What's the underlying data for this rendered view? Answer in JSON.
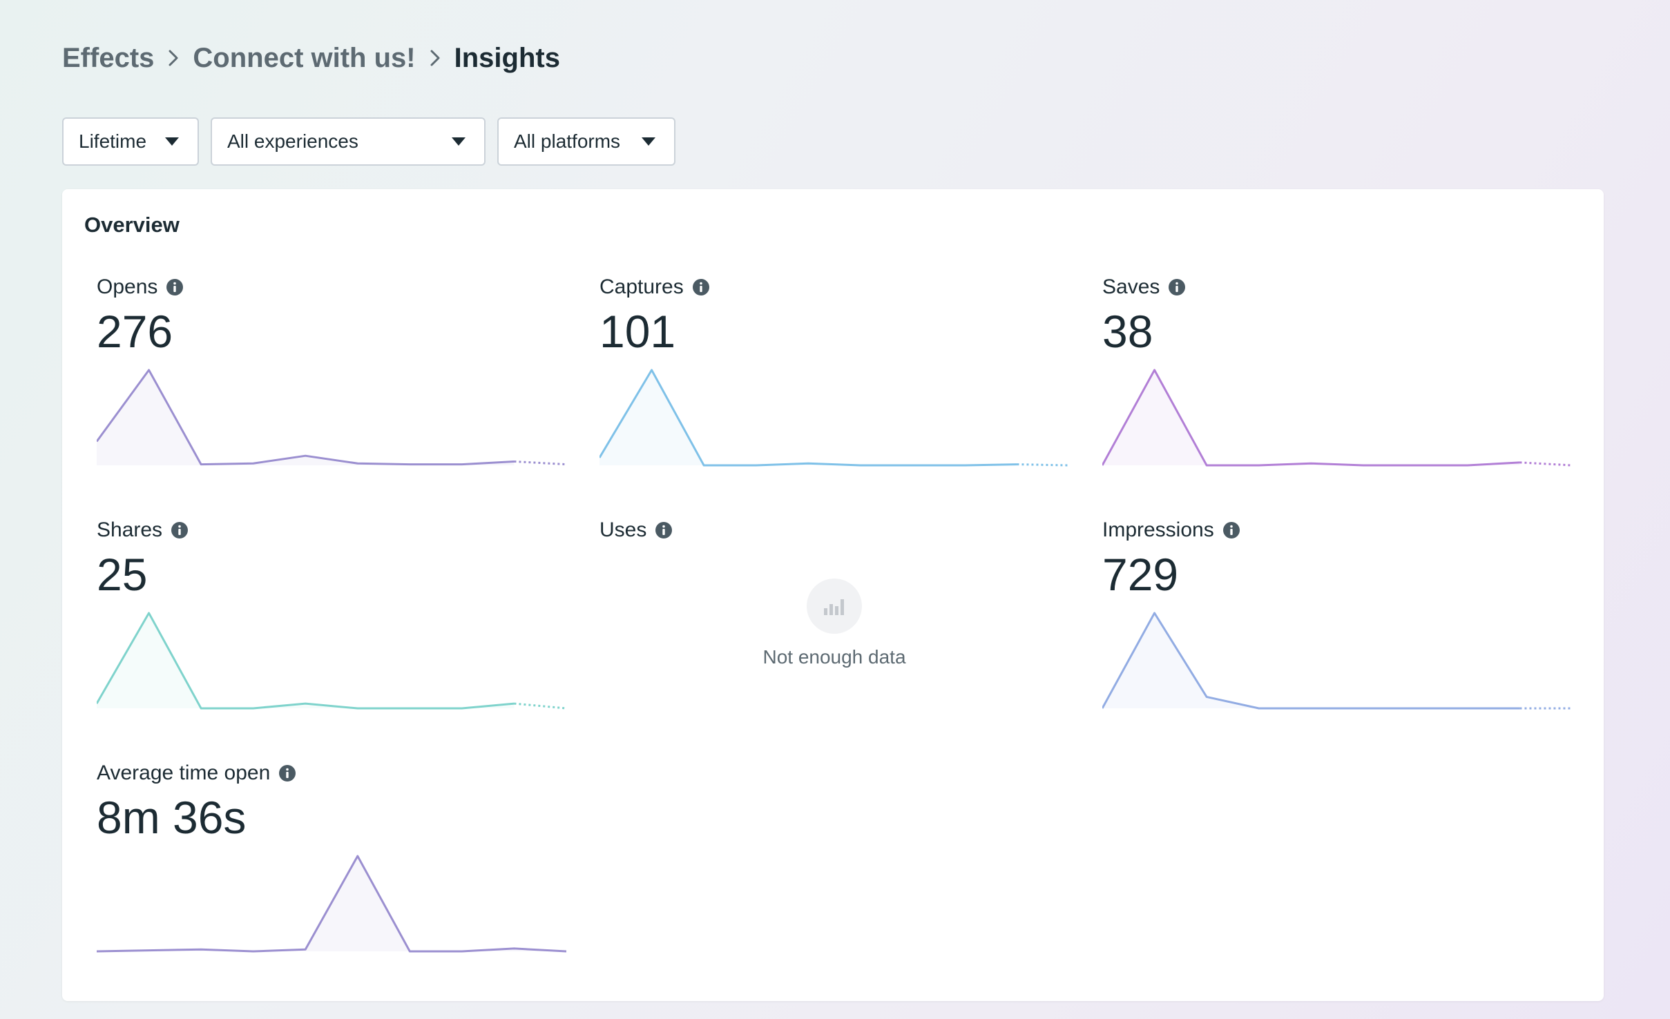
{
  "breadcrumb": {
    "items": [
      "Effects",
      "Connect with us!",
      "Insights"
    ]
  },
  "filters": {
    "time": "Lifetime",
    "experience": "All experiences",
    "platform": "All platforms"
  },
  "overview": {
    "title": "Overview",
    "metrics": [
      {
        "label": "Opens",
        "value": "276",
        "color": "#9b8fd0",
        "series": [
          0.25,
          1.0,
          0.01,
          0.02,
          0.1,
          0.02,
          0.01,
          0.01,
          0.04
        ],
        "tail": 0.01
      },
      {
        "label": "Captures",
        "value": "101",
        "color": "#7fc1e8",
        "series": [
          0.08,
          1.0,
          0.0,
          0.0,
          0.02,
          0.0,
          0.0,
          0.0,
          0.01
        ],
        "tail": 0.0
      },
      {
        "label": "Saves",
        "value": "38",
        "color": "#b27fd6",
        "series": [
          0.0,
          1.0,
          0.0,
          0.0,
          0.02,
          0.0,
          0.0,
          0.0,
          0.03
        ],
        "tail": 0.0
      },
      {
        "label": "Shares",
        "value": "25",
        "color": "#7fd3cc",
        "series": [
          0.05,
          1.0,
          0.0,
          0.0,
          0.05,
          0.0,
          0.0,
          0.0,
          0.05
        ],
        "tail": 0.0
      },
      {
        "label": "Uses",
        "empty_text": "Not enough data"
      },
      {
        "label": "Impressions",
        "value": "729",
        "color": "#92ace3",
        "series": [
          0.0,
          1.0,
          0.12,
          0.0,
          0.0,
          0.0,
          0.0,
          0.0,
          0.0
        ],
        "tail": 0.0
      },
      {
        "label": "Average time open",
        "value": "8m 36s",
        "color": "#9b8fd0",
        "series": [
          0.0,
          0.01,
          0.02,
          0.0,
          0.02,
          1.0,
          0.0,
          0.0,
          0.03,
          0.0
        ],
        "tail": null
      }
    ]
  }
}
